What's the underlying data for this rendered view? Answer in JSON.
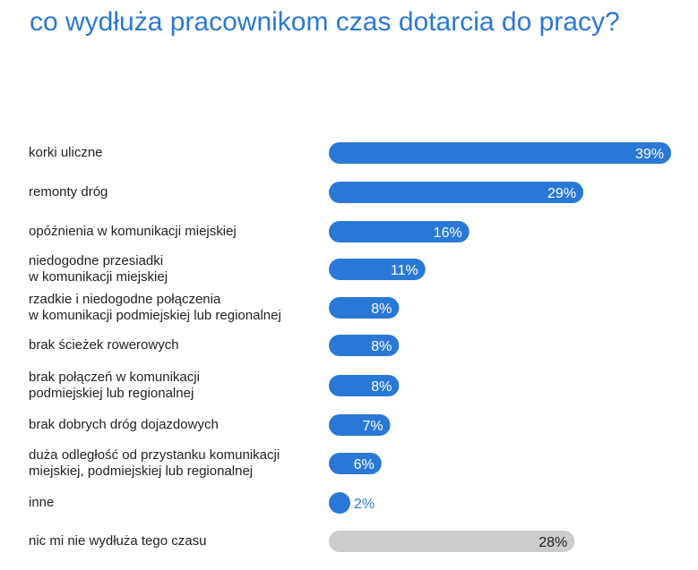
{
  "title": "co wydłuża pracownikom czas dotarcia do pracy?",
  "colors": {
    "bar": "#2a78d6",
    "bar_other": "#cccccc",
    "title": "#2a78d6",
    "label_on_bar": "#ffffff",
    "label_other": "#222222"
  },
  "chart_data": {
    "type": "bar",
    "orientation": "horizontal",
    "categories": [
      [
        "korki uliczne"
      ],
      [
        "remonty dróg"
      ],
      [
        "opóźnienia w komunikacji miejskiej"
      ],
      [
        "niedogodne przesiadki",
        "w komunikacji miejskiej"
      ],
      [
        "rzadkie i niedogodne połączenia",
        "w komunikacji podmiejskiej lub regionalnej"
      ],
      [
        "brak ścieżek rowerowych"
      ],
      [
        "brak połączeń w komunikacji",
        "podmiejskiej lub regionalnej"
      ],
      [
        "brak dobrych dróg dojazdowych"
      ],
      [
        "duża odległość od przystanku komunikacji",
        "miejskiej, podmiejskiej lub regionalnej"
      ],
      [
        "inne"
      ],
      [
        "nic mi nie wydłuża tego czasu"
      ]
    ],
    "values": [
      39,
      29,
      16,
      11,
      8,
      8,
      8,
      7,
      6,
      2,
      28
    ],
    "value_labels": [
      "39%",
      "29%",
      "16%",
      "11%",
      "8%",
      "8%",
      "8%",
      "7%",
      "6%",
      "2%",
      "28%"
    ],
    "highlight_last": true,
    "xlim": [
      0,
      39
    ]
  }
}
